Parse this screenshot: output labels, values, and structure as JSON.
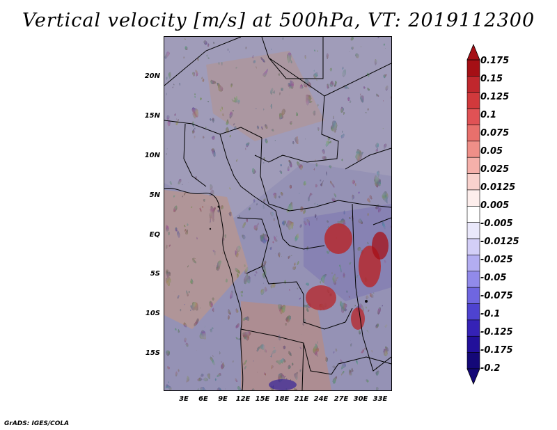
{
  "title": "Vertical velocity [m/s] at 500hPa, VT: 2019112300",
  "credit": "GrADS: IGES/COLA",
  "map": {
    "lat_labels": [
      "20N",
      "15N",
      "10N",
      "5N",
      "EQ",
      "5S",
      "10S",
      "15S"
    ],
    "lon_labels": [
      "3E",
      "6E",
      "9E",
      "12E",
      "15E",
      "18E",
      "21E",
      "24E",
      "27E",
      "30E",
      "33E"
    ]
  },
  "legend": {
    "labels": [
      "0.175",
      "0.15",
      "0.125",
      "0.1",
      "0.075",
      "0.05",
      "0.025",
      "0.0125",
      "0.005",
      "-0.005",
      "-0.0125",
      "-0.025",
      "-0.05",
      "-0.075",
      "-0.1",
      "-0.125",
      "-0.175",
      "-0.2"
    ],
    "colors": [
      "#a50f15",
      "#c0272d",
      "#d1393c",
      "#e05255",
      "#e8706c",
      "#ef8f88",
      "#f5b0aa",
      "#f9d2cd",
      "#fdeeec",
      "#ffffff",
      "#eae8fb",
      "#d3cef7",
      "#b3adf1",
      "#918aea",
      "#6f66e0",
      "#4e43d0",
      "#3522b6",
      "#22109a",
      "#140878"
    ]
  }
}
